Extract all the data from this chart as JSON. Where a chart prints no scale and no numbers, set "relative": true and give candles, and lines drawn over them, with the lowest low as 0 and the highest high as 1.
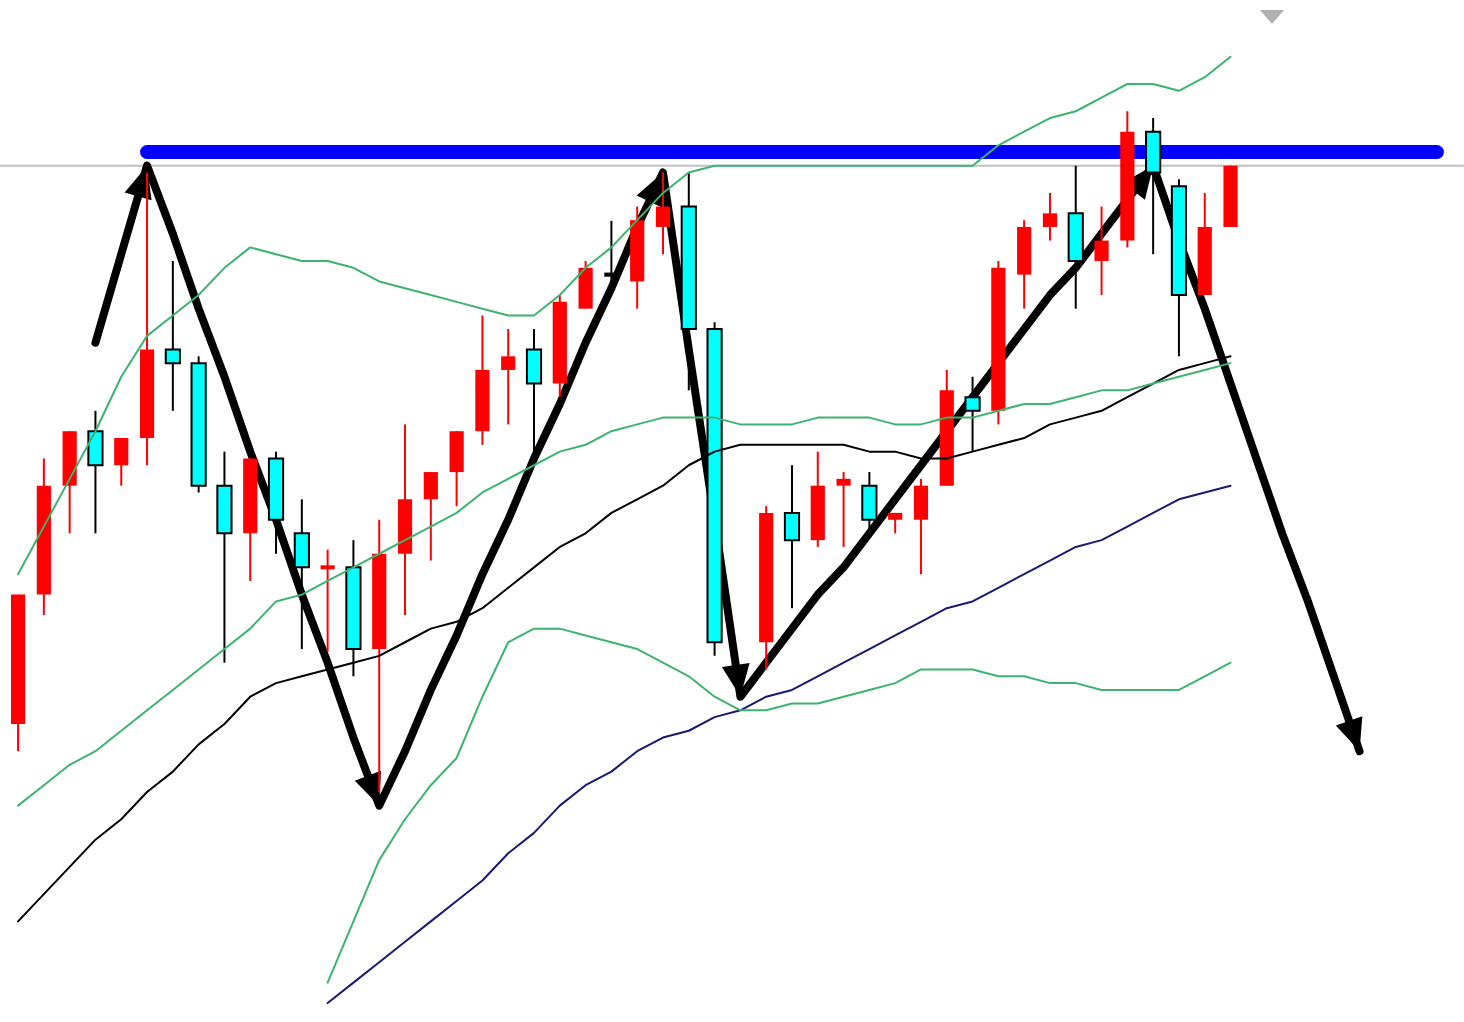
{
  "chart_data": {
    "type": "candlestick",
    "relative": true,
    "tick_labels": false,
    "grid": false,
    "legend": false,
    "categories": [
      null,
      null,
      null,
      null,
      null,
      null,
      null,
      null,
      null,
      null,
      null,
      null,
      null,
      null,
      null,
      null,
      null,
      null,
      null,
      null,
      null,
      null,
      null,
      null,
      null,
      null,
      null,
      null,
      null,
      null,
      null,
      null,
      null,
      null,
      null,
      null,
      null,
      null,
      null,
      null,
      null,
      null,
      null,
      null,
      null,
      null,
      null,
      null,
      null,
      null,
      null,
      null,
      null,
      null,
      null,
      null
    ],
    "ohlc": [
      [
        0.1,
        0.29,
        0.06,
        0.29
      ],
      [
        0.29,
        0.49,
        0.26,
        0.45
      ],
      [
        0.45,
        0.53,
        0.38,
        0.53
      ],
      [
        0.53,
        0.56,
        0.38,
        0.48
      ],
      [
        0.48,
        0.52,
        0.45,
        0.52
      ],
      [
        0.52,
        0.91,
        0.48,
        0.65
      ],
      [
        0.65,
        0.78,
        0.56,
        0.63
      ],
      [
        0.63,
        0.64,
        0.44,
        0.45
      ],
      [
        0.45,
        0.5,
        0.19,
        0.38
      ],
      [
        0.38,
        0.49,
        0.31,
        0.49
      ],
      [
        0.49,
        0.5,
        0.35,
        0.4
      ],
      [
        0.38,
        0.43,
        0.21,
        0.33
      ],
      [
        0.328,
        0.356,
        0.206,
        0.333
      ],
      [
        0.33,
        0.37,
        0.17,
        0.21
      ],
      [
        0.21,
        0.4,
        0,
        0.35
      ],
      [
        0.35,
        0.54,
        0.26,
        0.43
      ],
      [
        0.43,
        0.47,
        0.34,
        0.47
      ],
      [
        0.47,
        0.53,
        0.42,
        0.53
      ],
      [
        0.53,
        0.7,
        0.51,
        0.62
      ],
      [
        0.62,
        0.68,
        0.54,
        0.64
      ],
      [
        0.65,
        0.68,
        0.49,
        0.6
      ],
      [
        0.6,
        0.73,
        0.58,
        0.72
      ],
      [
        0.71,
        0.78,
        0.71,
        0.77
      ],
      [
        0.757,
        0.839,
        0.737,
        0.763
      ],
      [
        0.75,
        0.86,
        0.71,
        0.84
      ],
      [
        0.83,
        0.91,
        0.79,
        0.86
      ],
      [
        0.86,
        0.91,
        0.59,
        0.68
      ],
      [
        0.68,
        0.69,
        0.2,
        0.22
      ],
      null,
      [
        0.22,
        0.42,
        0.18,
        0.41
      ],
      [
        0.41,
        0.48,
        0.27,
        0.37
      ],
      [
        0.37,
        0.5,
        0.36,
        0.45
      ],
      [
        0.45,
        0.47,
        0.36,
        0.46
      ],
      [
        0.45,
        0.47,
        0.38,
        0.4
      ],
      [
        0.4,
        0.41,
        0.38,
        0.41
      ],
      [
        0.4,
        0.46,
        0.32,
        0.45
      ],
      [
        0.45,
        0.62,
        0.45,
        0.59
      ],
      [
        0.58,
        0.61,
        0.5,
        0.56
      ],
      [
        0.56,
        0.78,
        0.54,
        0.77
      ],
      [
        0.76,
        0.84,
        0.71,
        0.83
      ],
      [
        0.83,
        0.88,
        0.81,
        0.85
      ],
      [
        0.85,
        0.92,
        0.71,
        0.78
      ],
      [
        0.78,
        0.86,
        0.73,
        0.81
      ],
      [
        0.81,
        1,
        0.8,
        0.97
      ],
      [
        0.97,
        0.99,
        0.79,
        0.91
      ],
      [
        0.89,
        0.9,
        0.64,
        0.73
      ],
      [
        0.73,
        0.88,
        0.73,
        0.83
      ],
      [
        0.83,
        0.92,
        0.83,
        0.92
      ],
      null,
      null,
      null,
      null,
      null,
      null,
      null,
      null
    ],
    "colors": [
      "#ff0000",
      "#ff0000",
      "#ff0000",
      "#00ffff",
      "#ff0000",
      "#ff0000",
      "#00ffff",
      "#00ffff",
      "#00ffff",
      "#ff0000",
      "#00ffff",
      "#00ffff",
      "#ff0000",
      "#00ffff",
      "#ff0000",
      "#ff0000",
      "#ff0000",
      "#ff0000",
      "#ff0000",
      "#ff0000",
      "#00ffff",
      "#ff0000",
      "#ff0000",
      "#000000",
      "#ff0000",
      "#ff0000",
      "#00ffff",
      "#00ffff",
      null,
      "#ff0000",
      "#00ffff",
      "#ff0000",
      "#ff0000",
      "#00ffff",
      "#ff0000",
      "#ff0000",
      "#ff0000",
      "#00ffff",
      "#ff0000",
      "#ff0000",
      "#ff0000",
      "#00ffff",
      "#ff0000",
      "#ff0000",
      "#00ffff",
      "#00ffff",
      "#ff0000",
      "#ff0000",
      null,
      null,
      null,
      null,
      null,
      null,
      null,
      null
    ],
    "series": [
      {
        "type": "line",
        "color": "#3cb371",
        "values": [
          0.32,
          0.39,
          0.46,
          0.53,
          0.61,
          0.67,
          0.7,
          0.73,
          0.77,
          0.8,
          0.79,
          0.78,
          0.78,
          0.77,
          0.75,
          0.74,
          0.73,
          0.72,
          0.71,
          0.7,
          0.7,
          0.73,
          0.77,
          0.8,
          0.84,
          0.88,
          0.91,
          0.92,
          0.92,
          0.92,
          0.92,
          0.92,
          0.92,
          0.92,
          0.92,
          0.92,
          0.92,
          0.92,
          0.95,
          0.97,
          0.99,
          1.0,
          1.02,
          1.04,
          1.04,
          1.03,
          1.05,
          1.08,
          null,
          null,
          null,
          null,
          null,
          null,
          null,
          null
        ]
      },
      {
        "type": "line",
        "color": "#3cb371",
        "values": [
          -0.02,
          0.01,
          0.04,
          0.06,
          0.09,
          0.12,
          0.15,
          0.18,
          0.21,
          0.24,
          0.28,
          0.29,
          0.31,
          0.33,
          0.35,
          0.37,
          0.39,
          0.41,
          0.44,
          0.46,
          0.48,
          0.5,
          0.51,
          0.53,
          0.54,
          0.55,
          0.55,
          0.55,
          0.54,
          0.54,
          0.54,
          0.55,
          0.55,
          0.55,
          0.54,
          0.54,
          0.55,
          0.55,
          0.56,
          0.57,
          0.57,
          0.58,
          0.59,
          0.59,
          0.6,
          0.61,
          0.62,
          0.63,
          null,
          null,
          null,
          null,
          null,
          null,
          null,
          null
        ]
      },
      {
        "type": "line",
        "color": "#3cb371",
        "values": [
          null,
          null,
          null,
          null,
          null,
          null,
          null,
          null,
          null,
          null,
          null,
          null,
          -0.28,
          -0.19,
          -0.1,
          -0.04,
          0.01,
          0.05,
          0.14,
          0.22,
          0.24,
          0.24,
          0.23,
          0.22,
          0.21,
          0.19,
          0.17,
          0.14,
          0.12,
          0.12,
          0.13,
          0.13,
          0.14,
          0.15,
          0.16,
          0.18,
          0.18,
          0.18,
          0.17,
          0.17,
          0.16,
          0.16,
          0.15,
          0.15,
          0.15,
          0.15,
          0.17,
          0.19,
          null,
          null,
          null,
          null,
          null,
          null,
          null,
          null
        ]
      },
      {
        "type": "line",
        "color": "#000000",
        "values": [
          -0.19,
          -0.15,
          -0.11,
          -0.07,
          -0.04,
          0.0,
          0.03,
          0.07,
          0.1,
          0.14,
          0.16,
          0.17,
          0.18,
          0.19,
          0.2,
          0.22,
          0.24,
          0.25,
          0.27,
          0.3,
          0.33,
          0.36,
          0.38,
          0.41,
          0.43,
          0.45,
          0.48,
          0.5,
          0.51,
          0.51,
          0.51,
          0.51,
          0.51,
          0.5,
          0.5,
          0.49,
          0.49,
          0.5,
          0.51,
          0.52,
          0.54,
          0.55,
          0.56,
          0.58,
          0.6,
          0.62,
          0.63,
          0.64,
          null,
          null,
          null,
          null,
          null,
          null,
          null,
          null
        ]
      },
      {
        "type": "line",
        "color": "#191970",
        "values": [
          null,
          null,
          null,
          null,
          null,
          null,
          null,
          null,
          null,
          null,
          null,
          null,
          -0.31,
          -0.28,
          -0.25,
          -0.22,
          -0.19,
          -0.16,
          -0.13,
          -0.09,
          -0.06,
          -0.02,
          0.01,
          0.03,
          0.06,
          0.08,
          0.09,
          0.11,
          0.12,
          0.14,
          0.15,
          0.17,
          0.19,
          0.21,
          0.23,
          0.25,
          0.27,
          0.28,
          0.3,
          0.32,
          0.34,
          0.36,
          0.37,
          0.39,
          0.41,
          0.43,
          0.44,
          0.45,
          null,
          null,
          null,
          null,
          null,
          null,
          null,
          null
        ]
      },
      {
        "type": "line",
        "color": "#0000ff",
        "values": [
          null,
          null,
          null,
          null,
          null,
          0.94,
          0.94,
          0.94,
          0.94,
          0.94,
          0.94,
          0.94,
          0.94,
          0.94,
          0.94,
          0.94,
          0.94,
          0.94,
          0.94,
          0.94,
          0.94,
          0.94,
          0.94,
          0.94,
          0.94,
          0.94,
          0.94,
          0.94,
          0.94,
          0.94,
          0.94,
          0.94,
          0.94,
          0.94,
          0.94,
          0.94,
          0.94,
          0.94,
          0.94,
          0.94,
          0.94,
          0.94,
          0.94,
          0.94,
          0.94,
          0.94,
          0.94,
          0.94,
          0.94,
          0.94,
          0.94,
          0.94,
          0.94,
          0.94,
          0.94,
          0.94
        ]
      },
      {
        "type": "line",
        "color": "#000000",
        "values": [
          null,
          null,
          null,
          0.66,
          0.79,
          0.92,
          0.82,
          0.71,
          0.61,
          0.5,
          0.4,
          0.29,
          0.19,
          0.08,
          -0.02,
          0.06,
          0.15,
          0.23,
          0.32,
          0.4,
          0.49,
          0.57,
          0.66,
          0.74,
          0.83,
          0.91,
          0.65,
          0.4,
          0.14,
          0.19,
          0.24,
          0.29,
          0.33,
          0.38,
          0.43,
          0.48,
          0.53,
          0.58,
          0.63,
          0.68,
          0.73,
          0.77,
          0.82,
          0.87,
          0.92,
          0.81,
          0.71,
          0.6,
          0.49,
          0.38,
          0.28,
          0.17,
          0.06,
          null,
          null,
          null
        ]
      }
    ],
    "ref_lines": [
      {
        "axis": "y",
        "value": 0.92,
        "color": "#c0c0c0"
      }
    ]
  }
}
